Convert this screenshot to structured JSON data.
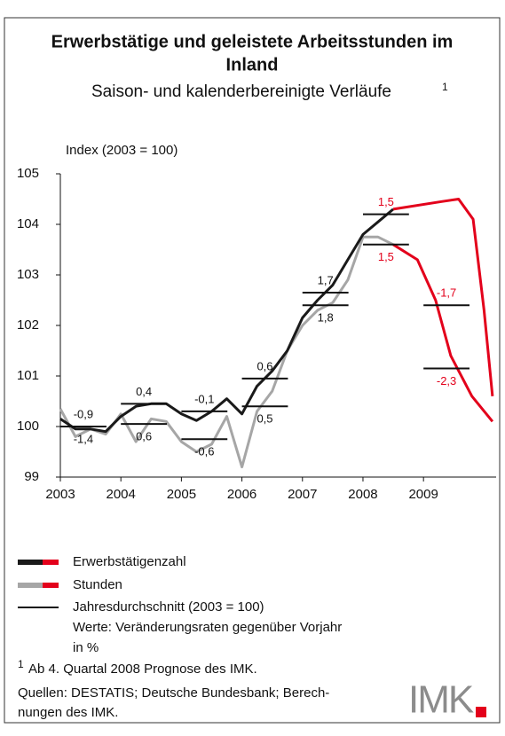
{
  "chart_data": {
    "type": "line",
    "title": [
      "Erwerbstätige und geleistete Arbeitsstunden im",
      "Inland"
    ],
    "subtitle": "Saison- und kalenderbereinigte Verläufe",
    "subtitle_note": "1",
    "y_label": "Index (2003 = 100)",
    "xlim": [
      2003,
      2010.2
    ],
    "xticks": [
      2003,
      2004,
      2005,
      2006,
      2007,
      2008,
      2009
    ],
    "ylim": [
      99,
      105
    ],
    "yticks": [
      99,
      100,
      101,
      102,
      103,
      104,
      105
    ],
    "forecast_color": "#e3001b",
    "series": [
      {
        "name": "Erwerbstätigenzahl",
        "color": "#1a1a1a",
        "x": [
          2003,
          2003.25,
          2003.5,
          2003.75,
          2004,
          2004.25,
          2004.5,
          2004.75,
          2005,
          2005.25,
          2005.5,
          2005.75,
          2006,
          2006.25,
          2006.5,
          2006.75,
          2007,
          2007.25,
          2007.5,
          2007.75,
          2008,
          2008.25,
          2008.5
        ],
        "values": [
          100.15,
          99.95,
          99.95,
          99.9,
          100.2,
          100.4,
          100.45,
          100.45,
          100.25,
          100.12,
          100.3,
          100.55,
          100.25,
          100.8,
          101.1,
          101.5,
          102.15,
          102.5,
          102.8,
          103.3,
          103.8,
          104.05,
          104.3
        ],
        "forecast_x": [
          2008.5,
          2009.3,
          2009.58,
          2009.82,
          2010.0,
          2010.14
        ],
        "forecast_values": [
          104.3,
          104.45,
          104.5,
          104.1,
          102.3,
          100.6
        ],
        "levels": [
          100.0,
          100.45,
          100.3,
          100.95,
          102.65,
          104.2,
          102.4
        ],
        "rates": [
          {
            "value": -0.9,
            "label": "-0,9"
          },
          {
            "value": 0.4,
            "label": "0,4"
          },
          {
            "value": -0.1,
            "label": "-0,1"
          },
          {
            "value": 0.6,
            "label": "0,6"
          },
          {
            "value": 1.7,
            "label": "1,7"
          },
          {
            "value": 1.5,
            "label": "1,5"
          },
          {
            "value": -1.7,
            "label": "-1,7"
          }
        ]
      },
      {
        "name": "Stunden",
        "color": "#a6a6a6",
        "x": [
          2003,
          2003.25,
          2003.5,
          2003.75,
          2004,
          2004.25,
          2004.5,
          2004.75,
          2005,
          2005.25,
          2005.5,
          2005.75,
          2006,
          2006.25,
          2006.5,
          2006.75,
          2007,
          2007.25,
          2007.5,
          2007.75,
          2008,
          2008.25,
          2008.5
        ],
        "values": [
          100.35,
          99.8,
          99.95,
          99.85,
          100.25,
          99.7,
          100.15,
          100.1,
          99.7,
          99.5,
          99.65,
          100.2,
          99.2,
          100.3,
          100.7,
          101.5,
          102.0,
          102.3,
          102.45,
          102.9,
          103.75,
          103.75,
          103.6
        ],
        "forecast_x": [
          2008.5,
          2008.9,
          2009.2,
          2009.45,
          2009.8,
          2010.14
        ],
        "forecast_values": [
          103.6,
          103.3,
          102.5,
          101.4,
          100.6,
          100.1
        ],
        "levels": [
          100.0,
          100.05,
          99.75,
          100.4,
          102.4,
          103.6,
          101.15
        ],
        "rates": [
          {
            "value": -1.4,
            "label": "-1,4"
          },
          {
            "value": 0.6,
            "label": "0,6"
          },
          {
            "value": -0.6,
            "label": "-0,6"
          },
          {
            "value": 0.5,
            "label": "0,5"
          },
          {
            "value": 1.8,
            "label": "1,8"
          },
          {
            "value": 1.5,
            "label": "1,5"
          },
          {
            "value": -2.3,
            "label": "-2,3"
          }
        ]
      }
    ],
    "forecast_from_year": 2008,
    "average_legend": "Jahresdurchschnitt (2003 = 100)",
    "average_note": [
      "Werte: Veränderungsraten gegenüber Vorjahr",
      "in %"
    ],
    "footnote_mark": "1",
    "footnote": "Ab 4. Quartal 2008 Prognose des IMK.",
    "sources": [
      "Quellen: DESTATIS; Deutsche Bundesbank; Berech-",
      "nungen des IMK."
    ],
    "logo": "IMK"
  }
}
